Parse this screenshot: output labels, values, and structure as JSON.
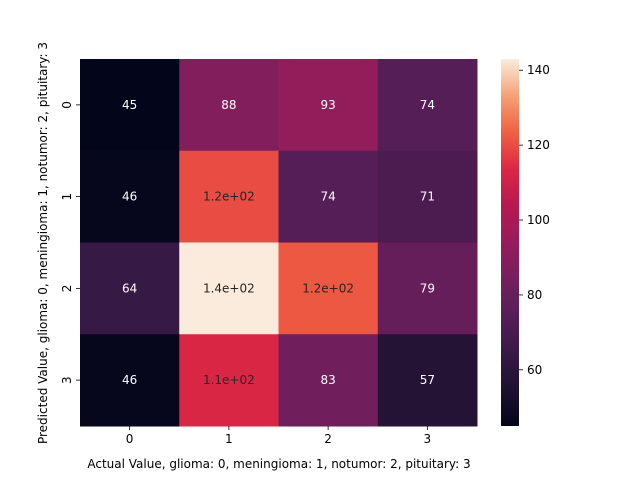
{
  "chart_data": {
    "type": "heatmap",
    "xlabel": "Actual Value, glioma: 0, meningioma: 1, notumor: 2, pituitary: 3",
    "ylabel": "Predicted Value, glioma: 0, meningioma: 1, notumor: 2, pituitary: 3",
    "x_categories": [
      "0",
      "1",
      "2",
      "3"
    ],
    "y_categories": [
      "0",
      "1",
      "2",
      "3"
    ],
    "values": [
      [
        45,
        88,
        93,
        74
      ],
      [
        46,
        120,
        74,
        71
      ],
      [
        64,
        143,
        122,
        79
      ],
      [
        46,
        113,
        83,
        57
      ]
    ],
    "annotations": [
      [
        "45",
        "88",
        "93",
        "74"
      ],
      [
        "46",
        "1.2e+02",
        "74",
        "71"
      ],
      [
        "64",
        "1.4e+02",
        "1.2e+02",
        "79"
      ],
      [
        "46",
        "1.1e+02",
        "83",
        "57"
      ]
    ],
    "colorbar": {
      "colormap": "rocket",
      "vmin": 45,
      "vmax": 143,
      "ticks": [
        "60",
        "80",
        "100",
        "120",
        "140"
      ]
    }
  }
}
